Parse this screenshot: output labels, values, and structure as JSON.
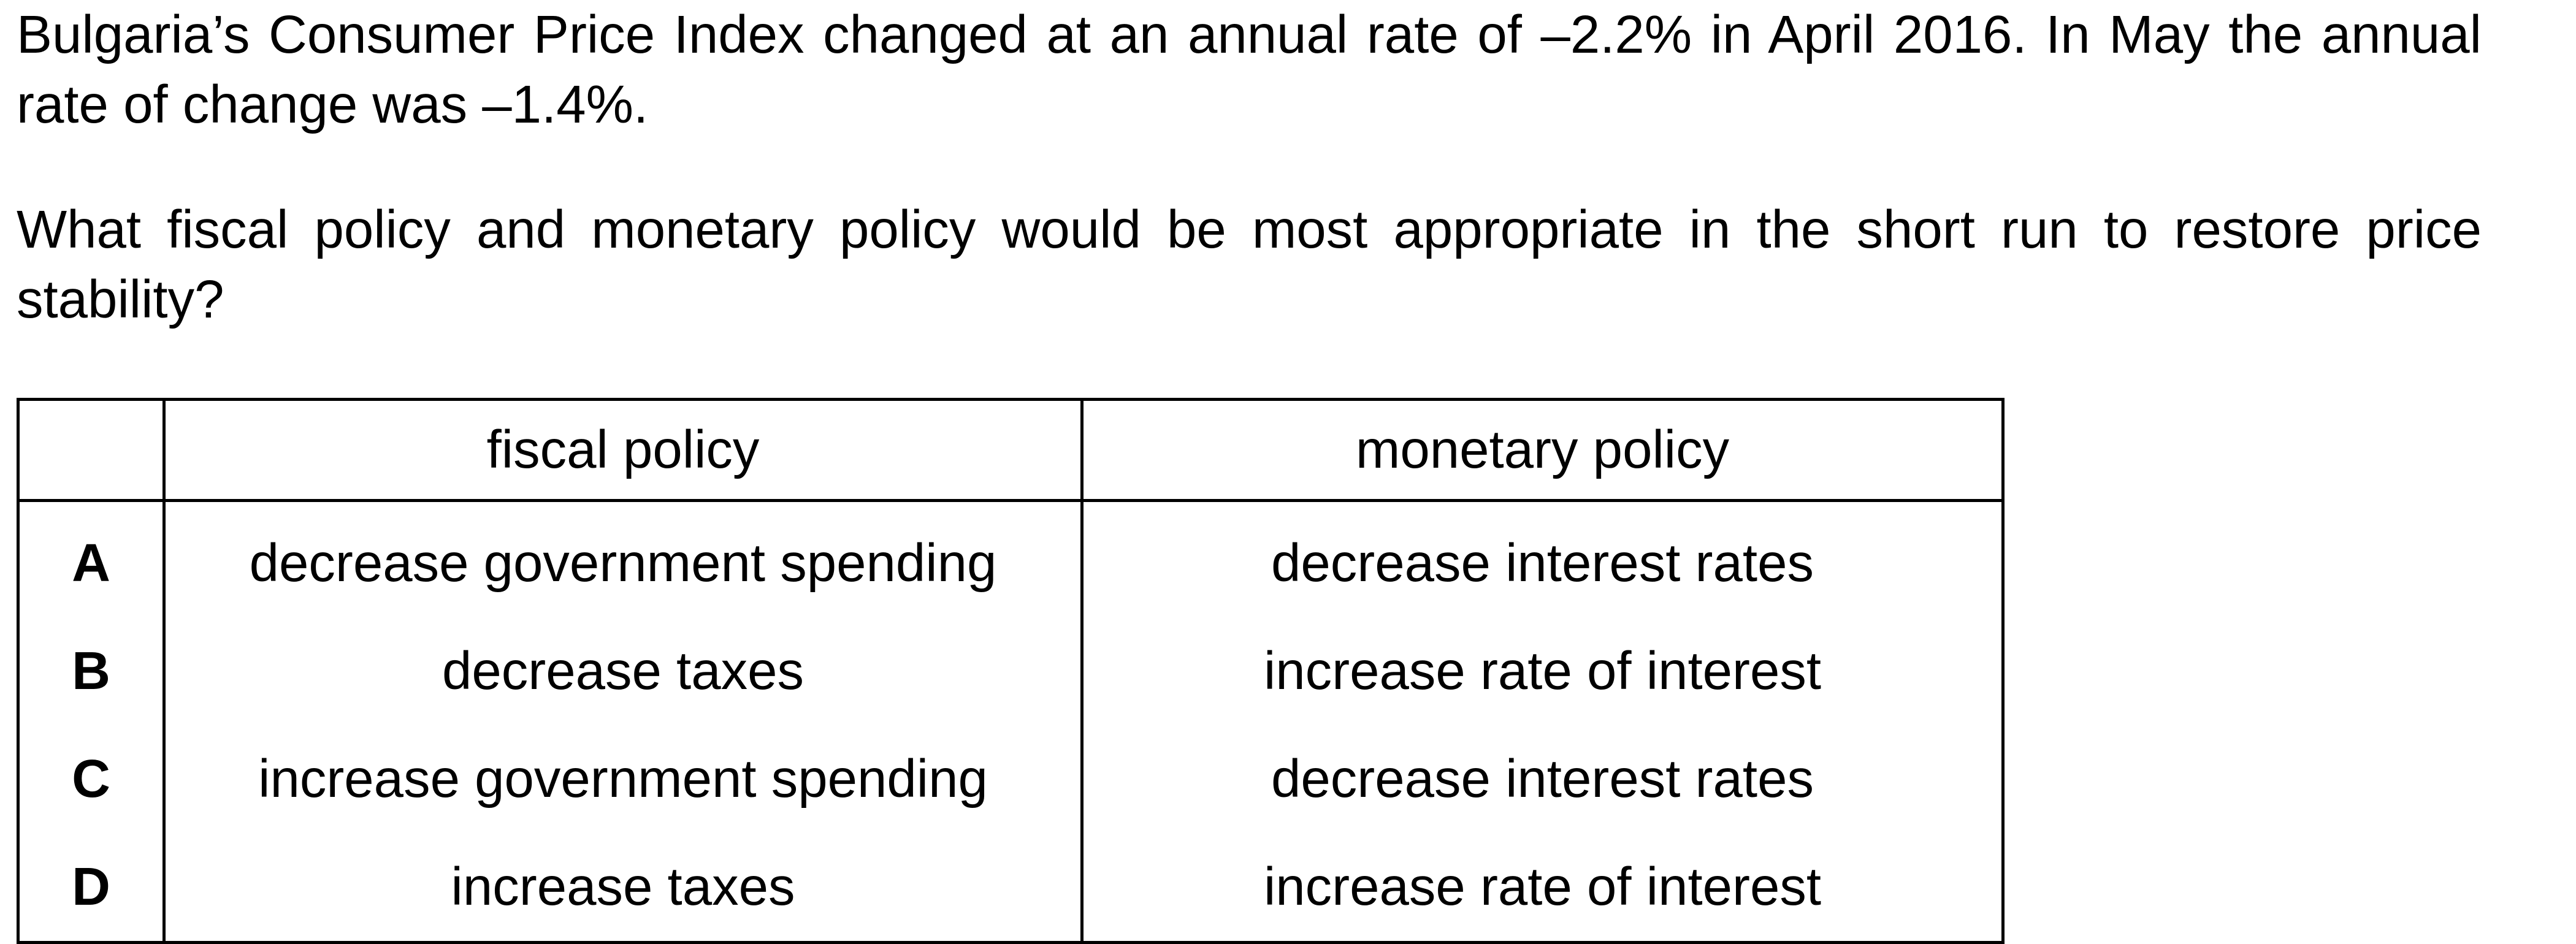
{
  "question": {
    "paragraph_1": "Bulgaria’s Consumer Price Index changed at an annual rate of –2.2% in April 2016. In May the annual rate of change was –1.4%.",
    "paragraph_2": "What fiscal policy and monetary policy would be most appropriate in the short run to restore price stability?"
  },
  "table": {
    "headers": {
      "letter": "",
      "fiscal": "fiscal policy",
      "monetary": "monetary policy"
    },
    "rows": [
      {
        "letter": "A",
        "fiscal": "decrease government spending",
        "monetary": "decrease interest rates"
      },
      {
        "letter": "B",
        "fiscal": "decrease taxes",
        "monetary": "increase rate of interest"
      },
      {
        "letter": "C",
        "fiscal": "increase government spending",
        "monetary": "decrease interest rates"
      },
      {
        "letter": "D",
        "fiscal": "increase taxes",
        "monetary": "increase rate of interest"
      }
    ]
  }
}
